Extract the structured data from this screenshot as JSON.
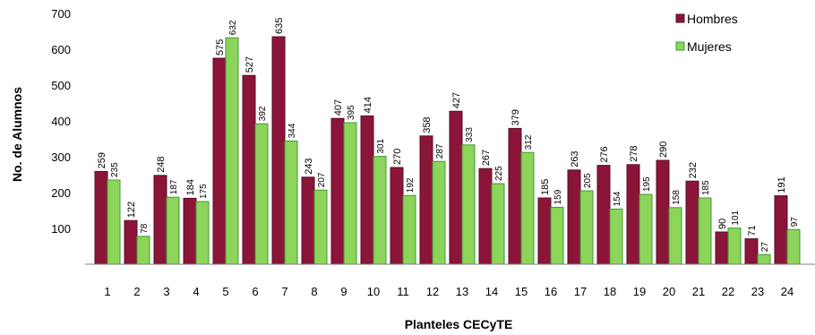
{
  "chart_data": {
    "type": "bar",
    "categories": [
      "1",
      "2",
      "3",
      "4",
      "5",
      "6",
      "7",
      "8",
      "9",
      "10",
      "11",
      "12",
      "13",
      "14",
      "15",
      "16",
      "17",
      "18",
      "19",
      "20",
      "21",
      "22",
      "23",
      "24"
    ],
    "series": [
      {
        "name": "Hombres",
        "color": "#8B1538",
        "values": [
          259,
          122,
          248,
          184,
          575,
          527,
          635,
          243,
          407,
          414,
          270,
          358,
          427,
          267,
          379,
          185,
          263,
          276,
          278,
          290,
          232,
          90,
          71,
          191
        ]
      },
      {
        "name": "Mujeres",
        "color": "#8CD45A",
        "values": [
          235,
          78,
          187,
          175,
          632,
          392,
          344,
          207,
          395,
          301,
          192,
          287,
          333,
          225,
          312,
          159,
          205,
          154,
          195,
          158,
          185,
          101,
          27,
          97
        ]
      }
    ],
    "xlabel": "Planteles CECyTE",
    "ylabel": "No. de Alumnos",
    "yticks": [
      "100",
      "200",
      "300",
      "400",
      "500",
      "600",
      "700"
    ],
    "ylim": [
      0,
      700
    ],
    "grid": false,
    "legend_position": "top-right"
  }
}
